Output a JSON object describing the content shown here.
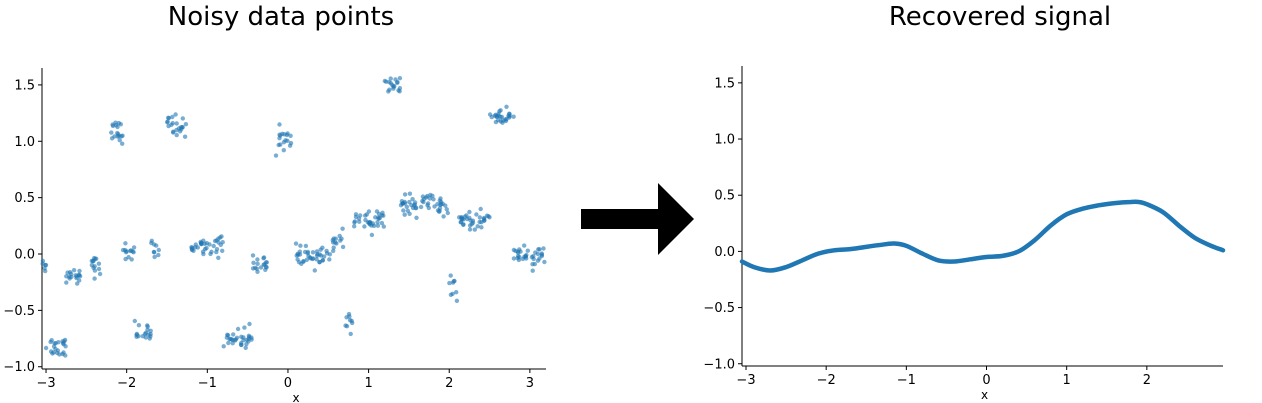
{
  "chart_data": [
    {
      "type": "scatter",
      "title": "Noisy data points",
      "xlabel": "x",
      "ylabel": "",
      "xlim": [
        -3.05,
        3.2
      ],
      "ylim": [
        -1.02,
        1.65
      ],
      "xticks": [
        -3,
        -2,
        -1,
        0,
        1,
        2,
        3
      ],
      "yticks": [
        -1.0,
        -0.5,
        0.0,
        0.5,
        1.0,
        1.5
      ],
      "color": "#1f77b4",
      "grid": false,
      "clusters": [
        {
          "x_range": [
            -3.05,
            -3.0
          ],
          "y": -0.08
        },
        {
          "x_range": [
            -3.0,
            -2.75
          ],
          "y": -0.82
        },
        {
          "x_range": [
            -2.75,
            -2.55
          ],
          "y": -0.18
        },
        {
          "x_range": [
            -2.45,
            -2.3
          ],
          "y": -0.11
        },
        {
          "x_range": [
            -2.25,
            -2.05
          ],
          "y": 1.08
        },
        {
          "x_range": [
            -2.05,
            -1.9
          ],
          "y": 0.02
        },
        {
          "x_range": [
            -1.9,
            -1.7
          ],
          "y": -0.69
        },
        {
          "x_range": [
            -1.7,
            -1.6
          ],
          "y": 0.03
        },
        {
          "x_range": [
            -1.5,
            -1.25
          ],
          "y": 1.14
        },
        {
          "x_range": [
            -1.2,
            -0.8
          ],
          "y": 0.07
        },
        {
          "x_range": [
            -0.8,
            -0.45
          ],
          "y": -0.75
        },
        {
          "x_range": [
            -0.45,
            -0.25
          ],
          "y": -0.08
        },
        {
          "x_range": [
            -0.15,
            0.05
          ],
          "y": 1.03
        },
        {
          "x_range": [
            0.1,
            0.55
          ],
          "y": -0.03
        },
        {
          "x_range": [
            0.55,
            0.7
          ],
          "y": 0.1
        },
        {
          "x_range": [
            0.7,
            0.8
          ],
          "y": -0.6
        },
        {
          "x_range": [
            0.8,
            1.2
          ],
          "y": 0.3
        },
        {
          "x_range": [
            1.2,
            1.4
          ],
          "y": 1.49
        },
        {
          "x_range": [
            1.4,
            2.0
          ],
          "y": 0.43
        },
        {
          "x_range": [
            2.0,
            2.1
          ],
          "y": -0.3
        },
        {
          "x_range": [
            2.1,
            2.5
          ],
          "y": 0.3
        },
        {
          "x_range": [
            2.5,
            2.8
          ],
          "y": 1.22
        },
        {
          "x_range": [
            2.8,
            3.2
          ],
          "y": -0.02
        }
      ]
    },
    {
      "type": "line",
      "title": "Recovered signal",
      "xlabel": "x",
      "ylabel": "",
      "xlim": [
        -3.05,
        2.95
      ],
      "ylim": [
        -1.02,
        1.65
      ],
      "xticks": [
        -3,
        -2,
        -1,
        0,
        1,
        2
      ],
      "yticks": [
        -1.0,
        -0.5,
        0.0,
        0.5,
        1.0,
        1.5
      ],
      "color": "#1f77b4",
      "grid": false,
      "x": [
        -3.05,
        -2.9,
        -2.7,
        -2.5,
        -2.3,
        -2.1,
        -1.9,
        -1.7,
        -1.5,
        -1.3,
        -1.15,
        -1.0,
        -0.8,
        -0.6,
        -0.4,
        -0.2,
        0.0,
        0.2,
        0.4,
        0.6,
        0.8,
        1.0,
        1.2,
        1.4,
        1.6,
        1.8,
        1.9,
        2.0,
        2.2,
        2.4,
        2.6,
        2.8,
        2.95
      ],
      "y": [
        -0.09,
        -0.14,
        -0.17,
        -0.14,
        -0.08,
        -0.02,
        0.01,
        0.02,
        0.04,
        0.06,
        0.07,
        0.05,
        -0.02,
        -0.08,
        -0.09,
        -0.07,
        -0.05,
        -0.04,
        0.0,
        0.1,
        0.23,
        0.33,
        0.38,
        0.41,
        0.43,
        0.44,
        0.44,
        0.42,
        0.35,
        0.23,
        0.12,
        0.05,
        0.01
      ]
    }
  ]
}
